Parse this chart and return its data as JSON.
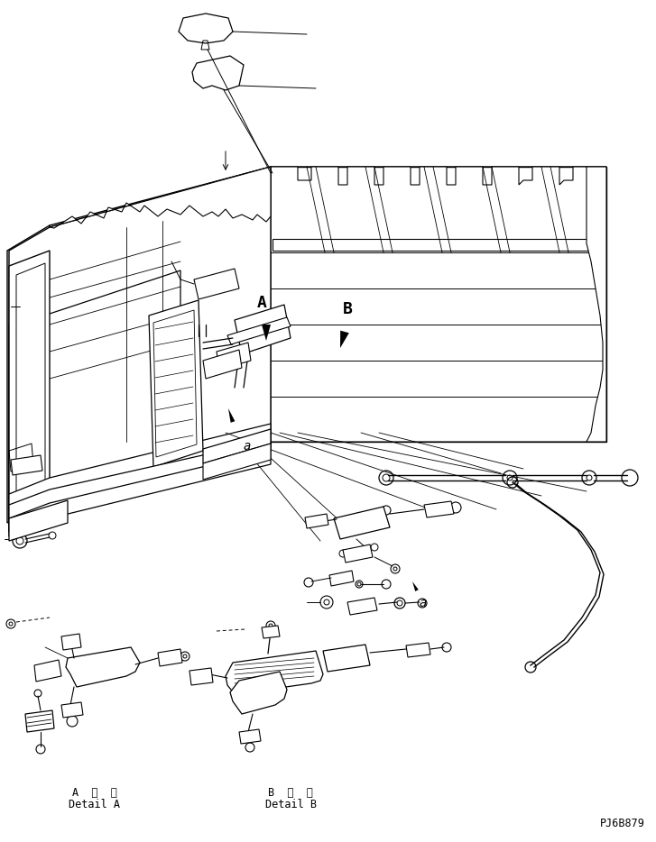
{
  "background_color": "#ffffff",
  "line_color": "#000000",
  "label_A_text": "A",
  "label_B_text": "B",
  "label_a_text": "a",
  "detail_A_jp": "A 詳細",
  "detail_A_en": "Detail A",
  "detail_B_jp": "B 詳細",
  "detail_B_en": "Detail B",
  "part_number": "PJ6B879",
  "figsize": [
    7.27,
    9.34
  ],
  "dpi": 100
}
